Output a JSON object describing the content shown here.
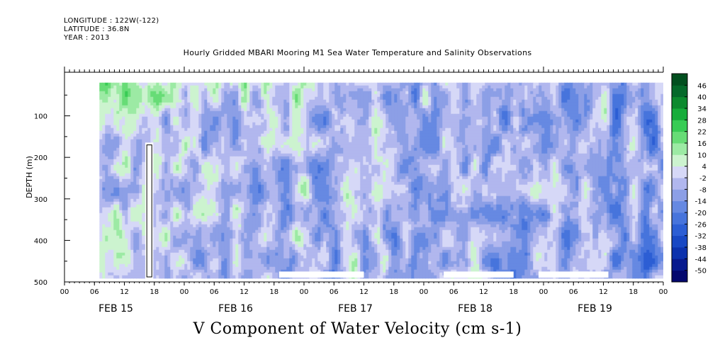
{
  "header": {
    "longitude": "LONGITUDE : 122W(-122)",
    "latitude": "LATITUDE : 36.8N",
    "year": "YEAR : 2013"
  },
  "chart_data": {
    "type": "heatmap",
    "title": "Hourly Gridded MBARI Mooring M1 Sea Water Temperature and Salinity Observations",
    "xlabel": "V Component of Water Velocity (cm s-1)",
    "ylabel": "DEPTH (m)",
    "ylim": [
      500,
      10
    ],
    "y_ticks": [
      100,
      200,
      300,
      400,
      500
    ],
    "y_tick_labels": [
      "100",
      "200",
      "300",
      "400",
      "500"
    ],
    "x_range_hours": [
      0,
      120
    ],
    "x_hour_tick_labels": [
      "00",
      "06",
      "12",
      "18",
      "00",
      "06",
      "12",
      "18",
      "00",
      "06",
      "12",
      "18",
      "00",
      "06",
      "12",
      "18",
      "00",
      "06",
      "12",
      "18",
      "00"
    ],
    "day_labels": [
      "FEB 15",
      "FEB 16",
      "FEB 17",
      "FEB 18",
      "FEB 19"
    ],
    "data_x_range_hours": [
      7,
      120
    ],
    "data_depth_range": [
      20,
      488
    ],
    "gap": {
      "hours": [
        16.5,
        17.5
      ],
      "depth_top": 170
    },
    "colorbar": {
      "levels": [
        -50,
        -44,
        -38,
        -32,
        -26,
        -20,
        -14,
        -8,
        -2,
        4,
        10,
        16,
        22,
        28,
        34,
        40,
        46
      ],
      "labels": [
        "46",
        "40",
        "34",
        "28",
        "22",
        "16",
        "10",
        "4",
        "-2",
        "-8",
        "-14",
        "-20",
        "-26",
        "-32",
        "-38",
        "-44",
        "-50"
      ],
      "colors": [
        "#04086e",
        "#071a8e",
        "#0c32ad",
        "#1848c4",
        "#2c5ed4",
        "#4774dc",
        "#6689e2",
        "#8c9fe6",
        "#b1b7ee",
        "#d6d8f7",
        "#ccf3cf",
        "#9ceaa4",
        "#67dc76",
        "#38cc55",
        "#16ad3a",
        "#0c8a2e",
        "#05692a",
        "#024f1f"
      ]
    },
    "grid": false,
    "field_description": "Depth-time field of northward (V) velocity: mostly weak negative (blue) flow at depth, positive (green) patches near surface and in bands."
  }
}
